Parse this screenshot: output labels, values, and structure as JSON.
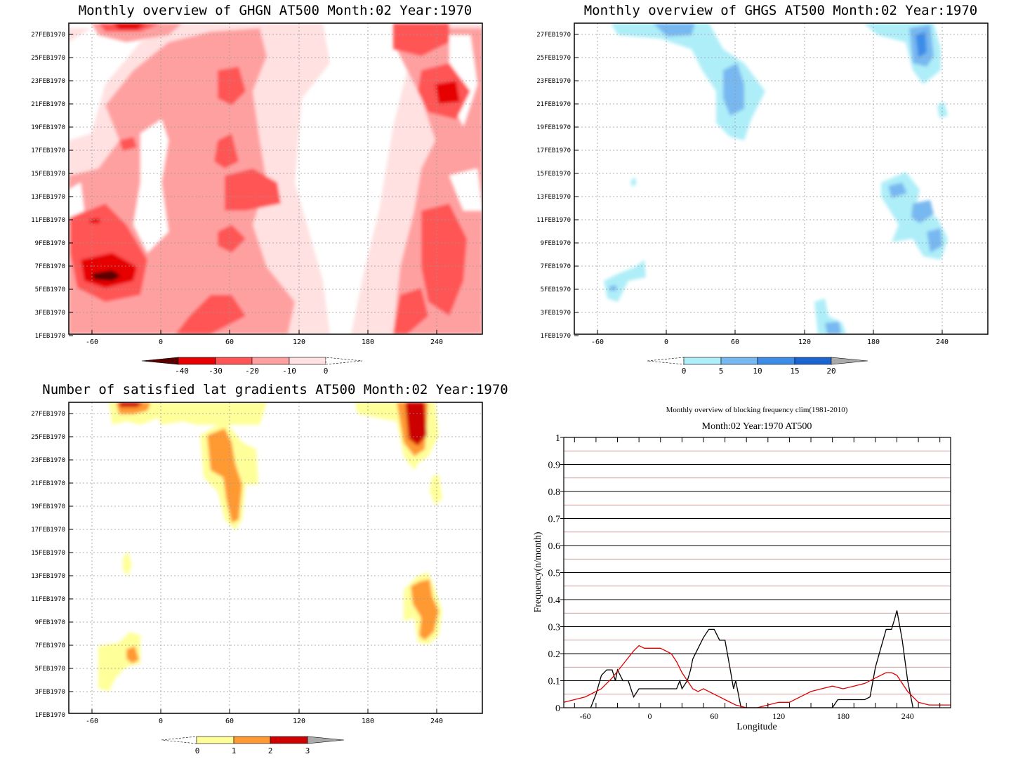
{
  "chart_data": [
    {
      "type": "heatmap",
      "title": "Monthly overview of GHGN AT500 Month:02 Year:1970",
      "x_ticks": [
        -60,
        0,
        60,
        120,
        180,
        240
      ],
      "y_ticks": [
        "1FEB1970",
        "3FEB1970",
        "5FEB1970",
        "7FEB1970",
        "9FEB1970",
        "11FEB1970",
        "13FEB1970",
        "15FEB1970",
        "17FEB1970",
        "19FEB1970",
        "21FEB1970",
        "23FEB1970",
        "25FEB1970",
        "27FEB1970"
      ],
      "colorbar": {
        "labels": [
          "-40",
          "-30",
          "-20",
          "-10",
          "0"
        ],
        "colors": [
          "#5a0000",
          "#e60000",
          "#ff5555",
          "#ffa0a0",
          "#ffe1e1"
        ]
      },
      "grid": true
    },
    {
      "type": "heatmap",
      "title": "Monthly overview of GHGS AT500 Month:02 Year:1970",
      "x_ticks": [
        -60,
        0,
        60,
        120,
        180,
        240
      ],
      "y_ticks": [
        "1FEB1970",
        "3FEB1970",
        "5FEB1970",
        "7FEB1970",
        "9FEB1970",
        "11FEB1970",
        "13FEB1970",
        "15FEB1970",
        "17FEB1970",
        "19FEB1970",
        "21FEB1970",
        "23FEB1970",
        "25FEB1970",
        "27FEB1970"
      ],
      "colorbar": {
        "labels": [
          "0",
          "5",
          "10",
          "15",
          "20"
        ],
        "colors": [
          "#aeeef8",
          "#78b8f0",
          "#3c8ce8",
          "#1c64d0",
          "#aaaaaa"
        ]
      },
      "grid": true
    },
    {
      "type": "heatmap",
      "title": "Number of satisfied lat gradients AT500 Month:02 Year:1970",
      "x_ticks": [
        -60,
        0,
        60,
        120,
        180,
        240
      ],
      "y_ticks": [
        "1FEB1970",
        "3FEB1970",
        "5FEB1970",
        "7FEB1970",
        "9FEB1970",
        "11FEB1970",
        "13FEB1970",
        "15FEB1970",
        "17FEB1970",
        "19FEB1970",
        "21FEB1970",
        "23FEB1970",
        "25FEB1970",
        "27FEB1970"
      ],
      "colorbar": {
        "labels": [
          "0",
          "1",
          "2",
          "3"
        ],
        "colors": [
          "#ffff99",
          "#ff9933",
          "#cc0000",
          "#aaaaaa"
        ]
      },
      "grid": true
    },
    {
      "type": "line",
      "title": "Monthly overview of blocking frequency clim(1981-2010)",
      "subtitle": "Month:02 Year:1970  AT500",
      "xlabel": "Longitude",
      "ylabel": "Frequency(n/month)",
      "xlim": [
        -80,
        280
      ],
      "ylim": [
        0,
        1
      ],
      "x_ticks": [
        -60,
        0,
        60,
        120,
        180,
        240
      ],
      "y_ticks": [
        "0",
        "0.1",
        "0.2",
        "0.3",
        "0.4",
        "0.5",
        "0.6",
        "0.7",
        "0.8",
        "0.9",
        "1"
      ],
      "series": [
        {
          "color": "#000000",
          "x": [
            -55,
            -50,
            -45,
            -40,
            -35,
            -32,
            -30,
            -25,
            -20,
            -15,
            -10,
            0,
            10,
            25,
            28,
            30,
            35,
            38,
            40,
            45,
            50,
            55,
            60,
            65,
            70,
            75,
            78,
            80,
            85,
            170,
            175,
            180,
            190,
            200,
            205,
            210,
            215,
            220,
            225,
            228,
            230,
            235,
            240,
            245
          ],
          "y": [
            0,
            0.05,
            0.12,
            0.14,
            0.14,
            0.1,
            0.14,
            0.1,
            0.1,
            0.04,
            0.07,
            0.07,
            0.07,
            0.07,
            0.1,
            0.07,
            0.1,
            0.14,
            0.18,
            0.22,
            0.26,
            0.29,
            0.29,
            0.25,
            0.25,
            0.14,
            0.07,
            0.1,
            0,
            0,
            0.03,
            0.03,
            0.03,
            0.03,
            0.04,
            0.15,
            0.22,
            0.29,
            0.29,
            0.33,
            0.36,
            0.25,
            0.1,
            0
          ]
        },
        {
          "color": "#e00000",
          "x": [
            -80,
            -60,
            -45,
            -35,
            -25,
            -15,
            -10,
            -5,
            0,
            5,
            10,
            20,
            25,
            30,
            35,
            40,
            45,
            50,
            55,
            60,
            65,
            70,
            80,
            90,
            100,
            110,
            120,
            130,
            140,
            150,
            160,
            170,
            180,
            190,
            200,
            210,
            215,
            220,
            225,
            230,
            240,
            250,
            260,
            270,
            280
          ],
          "y": [
            0.02,
            0.04,
            0.07,
            0.11,
            0.16,
            0.21,
            0.23,
            0.22,
            0.22,
            0.22,
            0.22,
            0.2,
            0.17,
            0.13,
            0.1,
            0.07,
            0.06,
            0.07,
            0.06,
            0.05,
            0.04,
            0.03,
            0.01,
            0,
            0,
            0.01,
            0.02,
            0.02,
            0.04,
            0.06,
            0.07,
            0.08,
            0.07,
            0.08,
            0.09,
            0.11,
            0.12,
            0.13,
            0.13,
            0.12,
            0.06,
            0.02,
            0.01,
            0.01,
            0.01
          ]
        }
      ],
      "grid": true
    }
  ]
}
